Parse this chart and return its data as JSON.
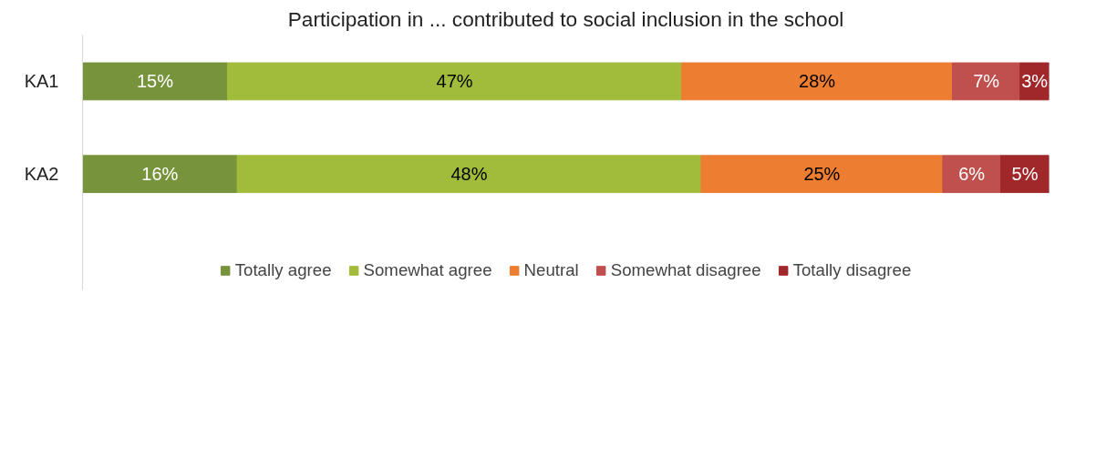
{
  "chart_data": {
    "type": "bar",
    "orientation": "horizontal",
    "stacked": true,
    "title": "Participation in ... contributed to social inclusion in the school",
    "categories": [
      "KA1",
      "KA2"
    ],
    "tick_labels": "y",
    "legend": "bottom",
    "series": [
      {
        "name": "Totally agree",
        "color": "#77933c",
        "values": [
          15,
          16
        ],
        "value_labels": [
          "15%",
          "16%"
        ]
      },
      {
        "name": "Somewhat agree",
        "color": "#a1bc3a",
        "values": [
          47,
          48
        ],
        "value_labels": [
          "47%",
          "48%"
        ]
      },
      {
        "name": "Neutral",
        "color": "#ed7d31",
        "values": [
          28,
          25
        ],
        "value_labels": [
          "28%",
          "25%"
        ]
      },
      {
        "name": "Somewhat disagree",
        "color": "#c0504d",
        "values": [
          7,
          6
        ],
        "value_labels": [
          "7%",
          "6%"
        ]
      },
      {
        "name": "Totally disagree",
        "color": "#a0282a",
        "values": [
          3,
          5
        ],
        "value_labels": [
          "3%",
          "5%"
        ]
      }
    ]
  }
}
